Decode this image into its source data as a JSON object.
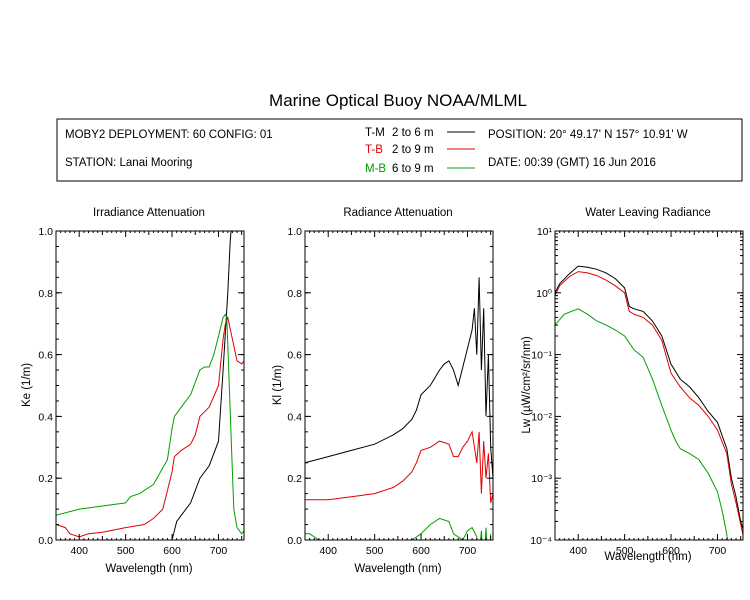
{
  "title": "Marine Optical Buoy NOAA/MLML",
  "header": {
    "deployment": "MOBY2 DEPLOYMENT: 60 CONFIG: 01",
    "station": "STATION: Lanai Mooring",
    "position": "POSITION: 20° 49.17' N   157° 10.91' W",
    "date": "DATE: 00:39 (GMT) 16 Jun 2016",
    "legend": [
      {
        "code": "T-M",
        "range": "2 to 6  m",
        "color": "#000000"
      },
      {
        "code": "T-B",
        "range": "2 to 9  m",
        "color": "#e00000"
      },
      {
        "code": "M-B",
        "range": "6 to 9  m",
        "color": "#00a000"
      }
    ]
  },
  "chart_data": [
    {
      "type": "line",
      "title": "Irradiance Attenuation",
      "xlabel": "Wavelength (nm)",
      "ylabel": "Ke  (1/m)",
      "xlim": [
        350,
        755
      ],
      "ylim": [
        0,
        1.0
      ],
      "xticks": [
        400,
        500,
        600,
        700
      ],
      "yticks": [
        0.0,
        0.2,
        0.4,
        0.6,
        0.8,
        1.0
      ],
      "ytick_labels": [
        "0.0",
        "0.2",
        "0.4",
        "0.6",
        "0.8",
        "1.0"
      ],
      "series": [
        {
          "name": "T-M",
          "color": "#000000",
          "x": [
            350,
            400,
            450,
            500,
            550,
            590,
            600,
            610,
            620,
            640,
            660,
            680,
            700,
            710,
            720,
            725,
            727,
            730,
            740,
            750,
            755
          ],
          "y": [
            -0.04,
            -0.03,
            -0.03,
            -0.02,
            -0.02,
            -0.02,
            0.0,
            0.06,
            0.08,
            0.12,
            0.2,
            0.24,
            0.32,
            0.55,
            0.8,
            0.96,
            1.0,
            1.0,
            1.0,
            1.0,
            1.0
          ]
        },
        {
          "name": "T-B",
          "color": "#e00000",
          "x": [
            350,
            370,
            380,
            400,
            420,
            450,
            500,
            540,
            560,
            580,
            590,
            600,
            605,
            620,
            640,
            650,
            660,
            680,
            700,
            710,
            715,
            720,
            730,
            740,
            750,
            755
          ],
          "y": [
            0.05,
            0.04,
            0.02,
            0.01,
            0.02,
            0.025,
            0.04,
            0.05,
            0.07,
            0.1,
            0.16,
            0.22,
            0.27,
            0.29,
            0.31,
            0.34,
            0.4,
            0.43,
            0.5,
            0.65,
            0.7,
            0.72,
            0.65,
            0.58,
            0.57,
            0.58
          ]
        },
        {
          "name": "M-B",
          "color": "#00a000",
          "x": [
            350,
            400,
            450,
            500,
            510,
            530,
            560,
            590,
            600,
            605,
            620,
            640,
            660,
            670,
            680,
            690,
            700,
            710,
            715,
            718,
            722,
            728,
            733,
            740,
            750,
            755
          ],
          "y": [
            0.08,
            0.1,
            0.11,
            0.12,
            0.14,
            0.15,
            0.18,
            0.26,
            0.36,
            0.4,
            0.43,
            0.47,
            0.55,
            0.56,
            0.56,
            0.6,
            0.66,
            0.72,
            0.73,
            0.72,
            0.55,
            0.3,
            0.1,
            0.04,
            0.02,
            0.03
          ]
        }
      ]
    },
    {
      "type": "line",
      "title": "Radiance Attenuation",
      "xlabel": "Wavelength (nm)",
      "ylabel": "Kl  (1/m)",
      "xlim": [
        350,
        755
      ],
      "ylim": [
        0,
        1.0
      ],
      "xticks": [
        400,
        500,
        600,
        700
      ],
      "yticks": [
        0.0,
        0.2,
        0.4,
        0.6,
        0.8,
        1.0
      ],
      "ytick_labels": [
        "0.0",
        "0.2",
        "0.4",
        "0.6",
        "0.8",
        "1.0"
      ],
      "series": [
        {
          "name": "T-M",
          "color": "#000000",
          "x": [
            350,
            400,
            450,
            500,
            540,
            560,
            580,
            590,
            600,
            620,
            640,
            650,
            660,
            670,
            680,
            690,
            700,
            710,
            715,
            720,
            725,
            730,
            735,
            740,
            745,
            750,
            755
          ],
          "y": [
            0.25,
            0.27,
            0.29,
            0.31,
            0.34,
            0.36,
            0.39,
            0.42,
            0.47,
            0.5,
            0.55,
            0.57,
            0.58,
            0.55,
            0.5,
            0.56,
            0.62,
            0.68,
            0.75,
            0.6,
            0.85,
            0.55,
            0.75,
            0.4,
            0.6,
            0.3,
            0.2
          ]
        },
        {
          "name": "T-B",
          "color": "#e00000",
          "x": [
            350,
            400,
            450,
            500,
            540,
            560,
            580,
            590,
            600,
            620,
            640,
            660,
            670,
            680,
            690,
            700,
            710,
            720,
            725,
            730,
            735,
            740,
            745,
            750,
            755
          ],
          "y": [
            0.13,
            0.13,
            0.14,
            0.15,
            0.17,
            0.19,
            0.22,
            0.25,
            0.29,
            0.3,
            0.32,
            0.31,
            0.27,
            0.27,
            0.3,
            0.32,
            0.35,
            0.25,
            0.35,
            0.15,
            0.32,
            0.2,
            0.28,
            0.12,
            0.15
          ]
        },
        {
          "name": "M-B",
          "color": "#00a000",
          "x": [
            350,
            360,
            380,
            400,
            450,
            500,
            550,
            580,
            600,
            620,
            640,
            660,
            670,
            680,
            690,
            700,
            710,
            720,
            725,
            730,
            735,
            740,
            745,
            750
          ],
          "y": [
            0.02,
            0.02,
            0.0,
            -0.01,
            -0.02,
            -0.02,
            -0.01,
            0.0,
            0.02,
            0.05,
            0.07,
            0.06,
            0.02,
            0.01,
            0.0,
            0.03,
            0.04,
            0.01,
            -0.05,
            0.03,
            -0.1,
            0.04,
            -0.1,
            0.02
          ]
        }
      ]
    },
    {
      "type": "line",
      "title": "Water Leaving Radiance",
      "xlabel": "Wavelength (nm)",
      "ylabel": "Lw  (µW/cm²/sr/nm)",
      "yscale": "log",
      "xlim": [
        350,
        755
      ],
      "ylim": [
        0.0001,
        10
      ],
      "xticks": [
        400,
        500,
        600,
        700
      ],
      "yticks": [
        0.0001,
        0.001,
        0.01,
        0.1,
        1,
        10
      ],
      "ytick_labels": [
        "10⁻⁴",
        "10⁻³",
        "10⁻²",
        "10⁻¹",
        "10⁰",
        "10¹"
      ],
      "series": [
        {
          "name": "T-M",
          "color": "#000000",
          "x": [
            350,
            360,
            380,
            400,
            420,
            440,
            460,
            480,
            500,
            510,
            520,
            540,
            560,
            580,
            600,
            620,
            640,
            660,
            680,
            700,
            720,
            730,
            740,
            750,
            755
          ],
          "y": [
            1.0,
            1.4,
            2.0,
            2.7,
            2.6,
            2.4,
            2.1,
            1.7,
            1.2,
            0.6,
            0.55,
            0.5,
            0.35,
            0.2,
            0.07,
            0.04,
            0.03,
            0.02,
            0.012,
            0.008,
            0.003,
            0.001,
            0.0005,
            0.0002,
            0.00015
          ]
        },
        {
          "name": "T-B",
          "color": "#e00000",
          "x": [
            350,
            360,
            380,
            400,
            420,
            440,
            460,
            480,
            500,
            510,
            520,
            540,
            560,
            580,
            600,
            620,
            640,
            660,
            680,
            700,
            720,
            730,
            740,
            750,
            755
          ],
          "y": [
            0.9,
            1.3,
            1.8,
            2.2,
            2.1,
            1.9,
            1.6,
            1.3,
            1.0,
            0.5,
            0.45,
            0.4,
            0.3,
            0.17,
            0.05,
            0.03,
            0.02,
            0.015,
            0.01,
            0.006,
            0.0025,
            0.0008,
            0.0004,
            0.00018,
            0.00012
          ]
        },
        {
          "name": "M-B",
          "color": "#00a000",
          "x": [
            350,
            370,
            400,
            420,
            440,
            460,
            480,
            500,
            520,
            540,
            560,
            580,
            600,
            610,
            620,
            640,
            660,
            680,
            700,
            710,
            718,
            722
          ],
          "y": [
            0.3,
            0.45,
            0.55,
            0.45,
            0.35,
            0.3,
            0.25,
            0.2,
            0.12,
            0.09,
            0.04,
            0.015,
            0.006,
            0.004,
            0.003,
            0.0025,
            0.002,
            0.0012,
            0.0006,
            0.0003,
            0.00015,
            0.0001
          ]
        }
      ]
    }
  ]
}
